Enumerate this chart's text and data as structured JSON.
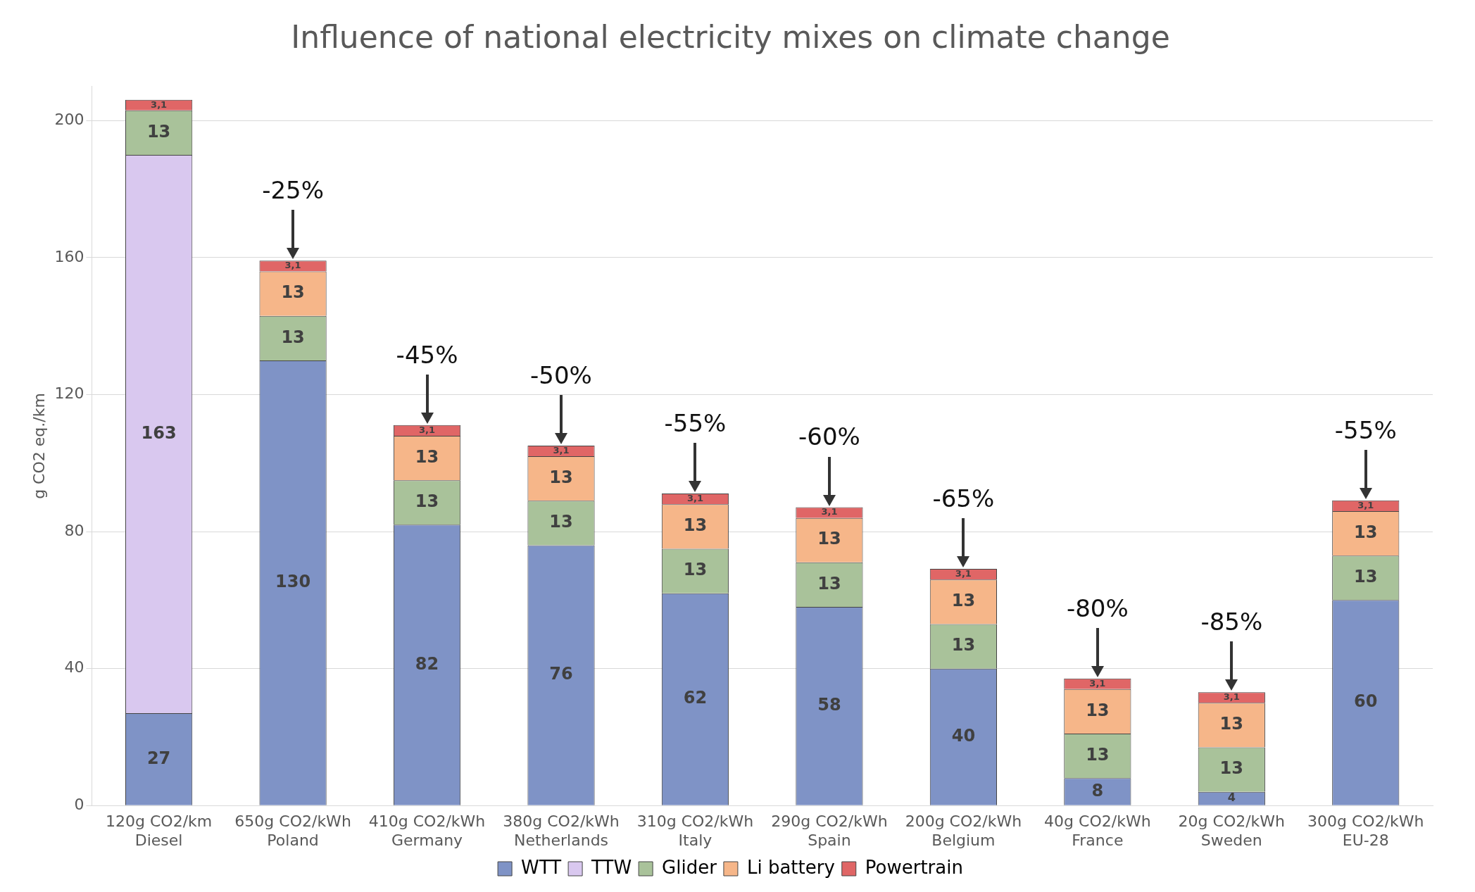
{
  "chart_data": {
    "type": "bar",
    "title": "Influence of national electricity mixes on climate change",
    "ylabel": "g CO2 eq./km",
    "categories": [
      "120g CO2/km\nDiesel",
      "650g CO2/kWh\nPoland",
      "410g CO2/kWh\nGermany",
      "380g CO2/kWh\nNetherlands",
      "310g CO2/kWh\nItaly",
      "290g CO2/kWh\nSpain",
      "200g CO2/kWh\nBelgium",
      "40g CO2/kWh\nFrance",
      "20g CO2/kWh\nSweden",
      "300g CO2/kWh\nEU-28"
    ],
    "stacked": true,
    "ylim": [
      0,
      210
    ],
    "yticks": [
      0,
      40,
      80,
      120,
      160,
      200
    ],
    "grid": "y",
    "legend": "bottom",
    "series": [
      {
        "name": "WTT",
        "color": "#7f93c6",
        "values": [
          27,
          130,
          82,
          76,
          62,
          58,
          40,
          8,
          4,
          60
        ],
        "value_labels": [
          "27",
          "130",
          "82",
          "76",
          "62",
          "58",
          "40",
          "8",
          "4",
          "60"
        ]
      },
      {
        "name": "TTW",
        "color": "#d9c8ef",
        "values": [
          163,
          null,
          null,
          null,
          null,
          null,
          null,
          null,
          null,
          null
        ],
        "value_labels": [
          "163",
          null,
          null,
          null,
          null,
          null,
          null,
          null,
          null,
          null
        ]
      },
      {
        "name": "Glider",
        "color": "#a9c29a",
        "values": [
          13,
          13,
          13,
          13,
          13,
          13,
          13,
          13,
          13,
          13
        ],
        "value_labels": [
          "13",
          "13",
          "13",
          "13",
          "13",
          "13",
          "13",
          "13",
          "13",
          "13"
        ]
      },
      {
        "name": "Li battery",
        "color": "#f6b689",
        "values": [
          null,
          13,
          13,
          13,
          13,
          13,
          13,
          13,
          13,
          13
        ],
        "value_labels": [
          null,
          "13",
          "13",
          "13",
          "13",
          "13",
          "13",
          "13",
          "13",
          "13"
        ]
      },
      {
        "name": "Powertrain",
        "color": "#e06666",
        "values": [
          3.1,
          3.1,
          3.1,
          3.1,
          3.1,
          3.1,
          3.1,
          3.1,
          3.1,
          3.1
        ],
        "value_labels": [
          "3,1",
          "3,1",
          "3,1",
          "3,1",
          "3,1",
          "3,1",
          "3,1",
          "3,1",
          "3,1",
          "3,1"
        ]
      }
    ],
    "annotations": [
      {
        "text": "-25%",
        "x": "650g CO2/kWh\nPoland",
        "y": 159.1
      },
      {
        "text": "-45%",
        "x": "410g CO2/kWh\nGermany",
        "y": 111.1
      },
      {
        "text": "-50%",
        "x": "380g CO2/kWh\nNetherlands",
        "y": 105.1
      },
      {
        "text": "-55%",
        "x": "310g CO2/kWh\nItaly",
        "y": 91.1
      },
      {
        "text": "-60%",
        "x": "290g CO2/kWh\nSpain",
        "y": 87.1
      },
      {
        "text": "-65%",
        "x": "200g CO2/kWh\nBelgium",
        "y": 69.1
      },
      {
        "text": "-80%",
        "x": "40g CO2/kWh\nFrance",
        "y": 37.1
      },
      {
        "text": "-85%",
        "x": "20g CO2/kWh\nSweden",
        "y": 33.1
      },
      {
        "text": "-55%",
        "x": "300g CO2/kWh\nEU-28",
        "y": 89.1
      }
    ]
  }
}
